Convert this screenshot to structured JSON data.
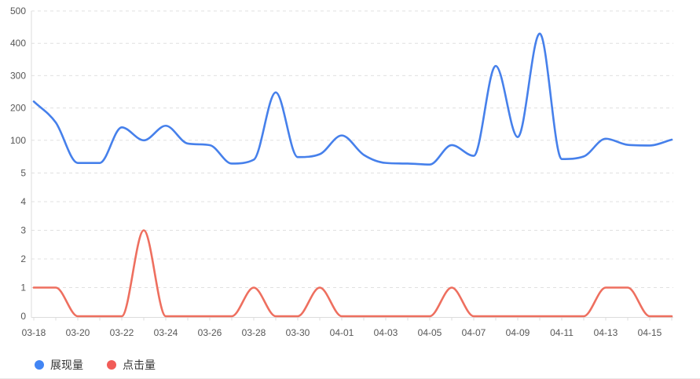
{
  "chart_data": {
    "type": "line",
    "smooth": true,
    "grid": "dashed, dual stacked grids sharing one x axis",
    "legend_position": "bottom-left",
    "x": [
      "03-18",
      "03-19",
      "03-20",
      "03-21",
      "03-22",
      "03-23",
      "03-24",
      "03-25",
      "03-26",
      "03-27",
      "03-28",
      "03-29",
      "03-30",
      "03-31",
      "04-01",
      "04-02",
      "04-03",
      "04-04",
      "04-05",
      "04-06",
      "04-07",
      "04-08",
      "04-09",
      "04-10",
      "04-11",
      "04-12",
      "04-13",
      "04-14",
      "04-15",
      "04-16"
    ],
    "x_tick_labels": [
      "03-18",
      "03-20",
      "03-22",
      "03-24",
      "03-26",
      "03-28",
      "03-30",
      "04-01",
      "04-03",
      "04-05",
      "04-07",
      "04-09",
      "04-11",
      "04-13",
      "04-15"
    ],
    "series": [
      {
        "name": "展现量",
        "axis": "top",
        "color": "#4680eb",
        "values": [
          220,
          155,
          30,
          30,
          140,
          100,
          145,
          90,
          85,
          28,
          40,
          248,
          48,
          57,
          115,
          55,
          30,
          28,
          25,
          85,
          52,
          330,
          110,
          430,
          42,
          50,
          105,
          86,
          84,
          102
        ]
      },
      {
        "name": "点击量",
        "axis": "bottom",
        "color": "#ee6f5f",
        "values": [
          1,
          1,
          0,
          0,
          0,
          3,
          0,
          0,
          0,
          0,
          1,
          0,
          0,
          1,
          0,
          0,
          0,
          0,
          0,
          1,
          0,
          0,
          0,
          0,
          0,
          0,
          1,
          1,
          0,
          0
        ]
      }
    ],
    "top_axis": {
      "ticks": [
        100,
        200,
        300,
        400,
        500
      ],
      "range": [
        0,
        500
      ],
      "tick_labels": [
        "100",
        "200",
        "300",
        "400",
        "500"
      ]
    },
    "bottom_axis": {
      "ticks": [
        0,
        1,
        2,
        3,
        4,
        5
      ],
      "range": [
        0,
        5
      ],
      "tick_labels": [
        "0",
        "1",
        "2",
        "3",
        "4",
        "5"
      ]
    },
    "title": "",
    "xlabel": "",
    "ylabel": ""
  },
  "legend": {
    "items": [
      {
        "label": "展现量",
        "color": "#4285f4"
      },
      {
        "label": "点击量",
        "color": "#f15c58"
      }
    ]
  },
  "style_colors": {
    "grid_line": "#e0e0e0",
    "axis_line": "#dcdcdc",
    "tick_text": "#565656"
  }
}
